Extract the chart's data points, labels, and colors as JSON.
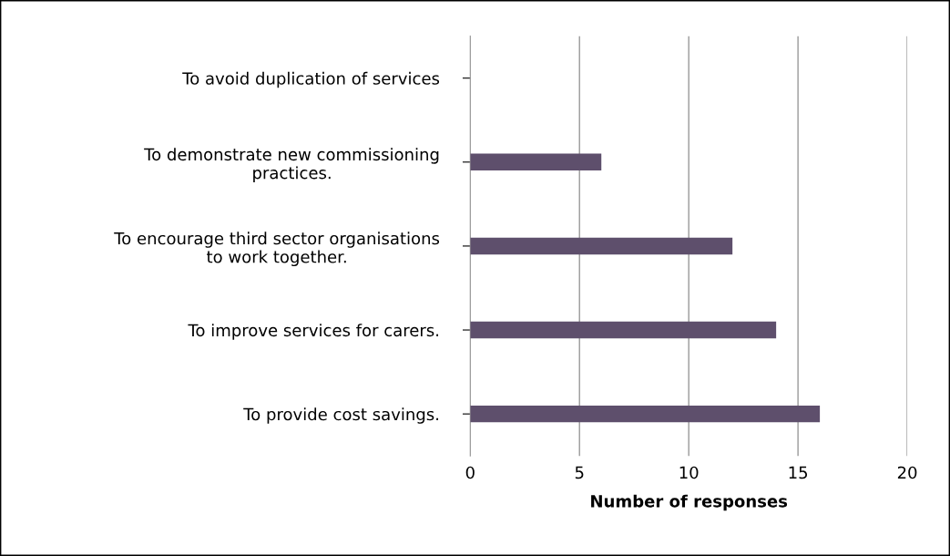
{
  "chart_data": {
    "type": "bar",
    "orientation": "horizontal",
    "categories": [
      "To avoid duplication of services",
      "To demonstrate new commissioning\npractices.",
      "To encourage third sector organisations\nto work together.",
      "To improve services for carers.",
      "To provide cost savings."
    ],
    "values": [
      0,
      6,
      12,
      14,
      16
    ],
    "color": "#5e4f6c",
    "xlim": [
      0,
      20
    ],
    "xticks": [
      0,
      5,
      10,
      15,
      20
    ],
    "xlabel": "Number of responses",
    "grid": "x",
    "legend": false
  }
}
